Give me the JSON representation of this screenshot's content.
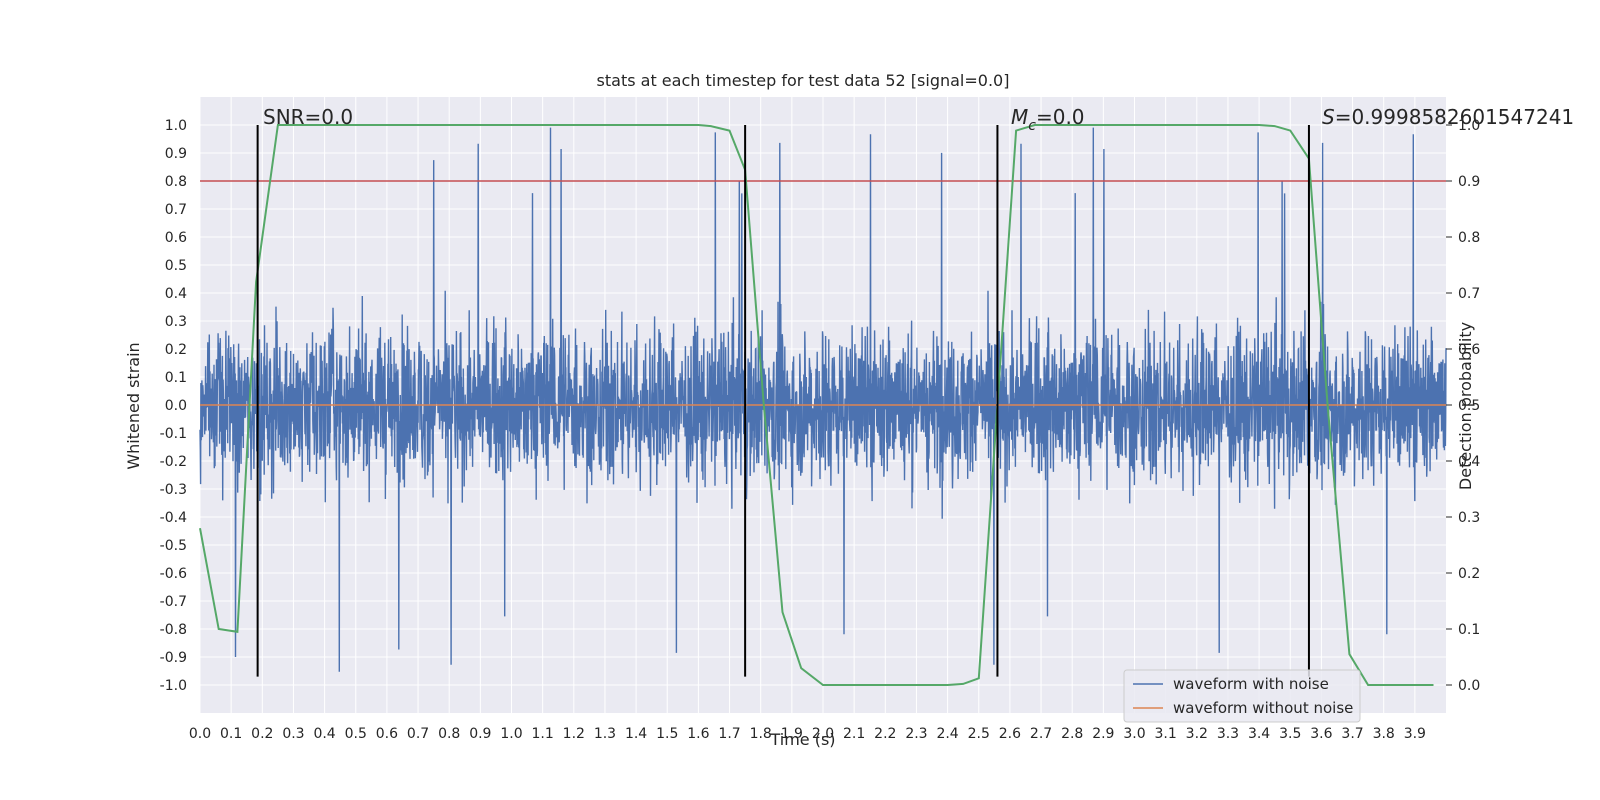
{
  "chart_data": {
    "type": "line",
    "title": "stats at each timestep for test data 52 [signal=0.0]",
    "xlabel": "Time (s)",
    "ylabel": "Whitened strain",
    "y2label": "Detection probability",
    "xlim": [
      0.0,
      4.0
    ],
    "ylim": [
      -1.1,
      1.1
    ],
    "y2lim": [
      -0.05,
      1.05
    ],
    "xticks": [
      "0.0",
      "0.1",
      "0.2",
      "0.3",
      "0.4",
      "0.5",
      "0.6",
      "0.7",
      "0.8",
      "0.9",
      "1.0",
      "1.1",
      "1.2",
      "1.3",
      "1.4",
      "1.5",
      "1.6",
      "1.7",
      "1.8",
      "1.9",
      "2.0",
      "2.1",
      "2.2",
      "2.3",
      "2.4",
      "2.5",
      "2.6",
      "2.7",
      "2.8",
      "2.9",
      "3.0",
      "3.1",
      "3.2",
      "3.3",
      "3.4",
      "3.5",
      "3.6",
      "3.7",
      "3.8",
      "3.9"
    ],
    "yticks": [
      "1.0",
      "0.9",
      "0.8",
      "0.7",
      "0.6",
      "0.5",
      "0.4",
      "0.3",
      "0.2",
      "0.1",
      "0.0",
      "-0.1",
      "-0.2",
      "-0.3",
      "-0.4",
      "-0.5",
      "-0.6",
      "-0.7",
      "-0.8",
      "-0.9",
      "-1.0"
    ],
    "y2ticks": [
      "1.0",
      "0.9",
      "0.8",
      "0.7",
      "0.6",
      "0.5",
      "0.4",
      "0.3",
      "0.2",
      "0.1",
      "0.0"
    ],
    "grid": true,
    "legend_position": "lower-right",
    "colors": {
      "noise": "#4c72b0",
      "clean": "#dd8452",
      "prob": "#55a868",
      "threshold": "#c44e52",
      "vlines": "#000000",
      "background": "#eaeaf2"
    },
    "series": [
      {
        "name": "waveform with noise",
        "kind": "noise",
        "amplitude_peak": 1.0,
        "amplitude_trough": -0.97
      },
      {
        "name": "waveform without noise",
        "kind": "constant",
        "y": 0.0
      },
      {
        "kind": "detection_probability",
        "axis": "right",
        "x": [
          0.0,
          0.06,
          0.12,
          0.18,
          0.25,
          0.3,
          0.4,
          0.5,
          0.6,
          0.7,
          0.8,
          0.9,
          1.0,
          1.1,
          1.2,
          1.3,
          1.4,
          1.5,
          1.6,
          1.64,
          1.7,
          1.75,
          1.81,
          1.87,
          1.93,
          2.0,
          2.1,
          2.2,
          2.3,
          2.4,
          2.45,
          2.5,
          2.56,
          2.62,
          2.68,
          2.8,
          2.9,
          3.0,
          3.1,
          3.2,
          3.3,
          3.4,
          3.45,
          3.5,
          3.56,
          3.62,
          3.69,
          3.75,
          3.81,
          3.9,
          3.96
        ],
        "y": [
          0.28,
          0.1,
          0.095,
          0.72,
          1.0,
          1.0,
          1.0,
          1.0,
          1.0,
          1.0,
          1.0,
          1.0,
          1.0,
          1.0,
          1.0,
          1.0,
          1.0,
          1.0,
          1.0,
          0.998,
          0.99,
          0.92,
          0.5,
          0.13,
          0.03,
          0.0,
          0.0,
          0.0,
          0.0,
          0.0,
          0.002,
          0.012,
          0.5,
          0.99,
          1.0,
          1.0,
          1.0,
          1.0,
          1.0,
          1.0,
          1.0,
          1.0,
          0.998,
          0.99,
          0.94,
          0.5,
          0.055,
          0.0,
          0.0,
          0.0,
          0.0
        ]
      },
      {
        "kind": "threshold",
        "axis": "right",
        "y": 0.9
      }
    ],
    "vlines": [
      0.185,
      1.75,
      2.56,
      3.56
    ],
    "annotations": {
      "snr": "SNR=0.0",
      "mc_symbol": "M",
      "mc_sub": "c",
      "mc_value": "=0.0",
      "s_symbol": "S",
      "s_value": "=0.9998582601547241"
    },
    "legend": [
      "waveform with noise",
      "waveform without noise"
    ]
  }
}
